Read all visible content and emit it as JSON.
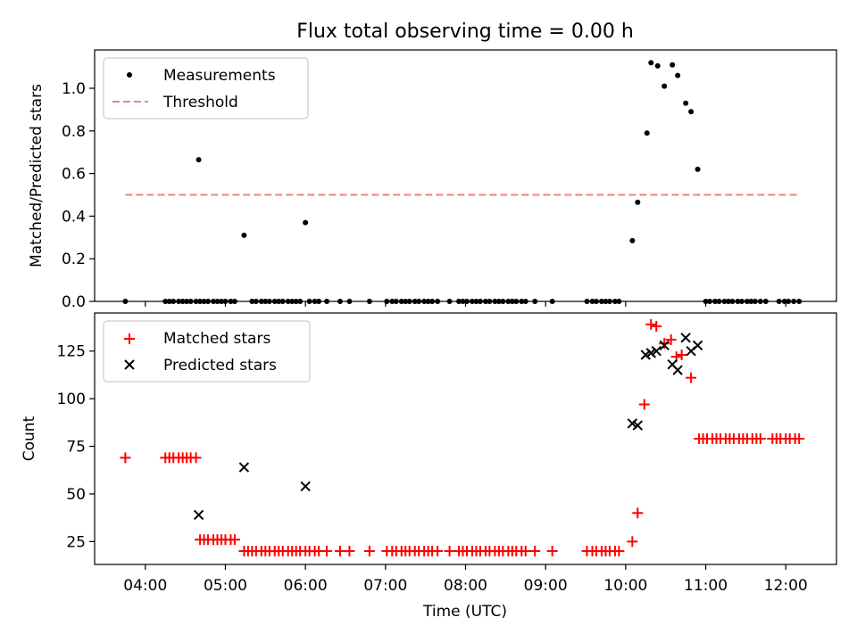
{
  "figure_title": "Flux total observing time = 0.00 h",
  "colors": {
    "measurement": "#000000",
    "threshold": "#f08080",
    "matched": "#ff0000",
    "predicted": "#000000"
  },
  "chart_data": [
    {
      "type": "scatter",
      "title": "Flux total observing time = 0.00 h",
      "xlabel": "",
      "ylabel": "Matched/Predicted stars",
      "xlim": [
        "03:22",
        "12:38"
      ],
      "ylim": [
        0,
        1.18
      ],
      "grid": false,
      "legend_position": "upper-left",
      "yticks": [
        0.0,
        0.2,
        0.4,
        0.6,
        0.8,
        1.0
      ],
      "ytick_labels": [
        "0.0",
        "0.2",
        "0.4",
        "0.6",
        "0.8",
        "1.0"
      ],
      "legend": {
        "measurements": "Measurements",
        "threshold": "Threshold"
      },
      "threshold": {
        "name": "Threshold",
        "y": 0.5,
        "x_range": [
          "03:45",
          "12:10"
        ]
      },
      "series": [
        {
          "name": "Measurements",
          "marker": "dot",
          "points": [
            [
              "03:45",
              0.0
            ],
            [
              "04:15",
              0.0
            ],
            [
              "04:18",
              0.0
            ],
            [
              "04:21",
              0.0
            ],
            [
              "04:25",
              0.0
            ],
            [
              "04:28",
              0.0
            ],
            [
              "04:31",
              0.0
            ],
            [
              "04:34",
              0.0
            ],
            [
              "04:38",
              0.0
            ],
            [
              "04:41",
              0.0
            ],
            [
              "04:44",
              0.0
            ],
            [
              "04:47",
              0.0
            ],
            [
              "04:40",
              0.665
            ],
            [
              "04:51",
              0.0
            ],
            [
              "04:54",
              0.0
            ],
            [
              "04:57",
              0.0
            ],
            [
              "05:00",
              0.0
            ],
            [
              "05:04",
              0.0
            ],
            [
              "05:07",
              0.0
            ],
            [
              "05:14",
              0.31
            ],
            [
              "05:20",
              0.0
            ],
            [
              "05:23",
              0.0
            ],
            [
              "05:27",
              0.0
            ],
            [
              "05:30",
              0.0
            ],
            [
              "05:33",
              0.0
            ],
            [
              "05:37",
              0.0
            ],
            [
              "05:40",
              0.0
            ],
            [
              "05:43",
              0.0
            ],
            [
              "05:47",
              0.0
            ],
            [
              "05:50",
              0.0
            ],
            [
              "05:53",
              0.0
            ],
            [
              "05:56",
              0.0
            ],
            [
              "06:00",
              0.37
            ],
            [
              "06:03",
              0.0
            ],
            [
              "06:07",
              0.0
            ],
            [
              "06:10",
              0.0
            ],
            [
              "06:16",
              0.0
            ],
            [
              "06:26",
              0.0
            ],
            [
              "06:33",
              0.0
            ],
            [
              "06:48",
              0.0
            ],
            [
              "07:01",
              0.0
            ],
            [
              "07:05",
              0.0
            ],
            [
              "07:08",
              0.0
            ],
            [
              "07:12",
              0.0
            ],
            [
              "07:15",
              0.0
            ],
            [
              "07:18",
              0.0
            ],
            [
              "07:22",
              0.0
            ],
            [
              "07:25",
              0.0
            ],
            [
              "07:29",
              0.0
            ],
            [
              "07:32",
              0.0
            ],
            [
              "07:35",
              0.0
            ],
            [
              "07:39",
              0.0
            ],
            [
              "07:48",
              0.0
            ],
            [
              "07:55",
              0.0
            ],
            [
              "07:58",
              0.0
            ],
            [
              "08:01",
              0.0
            ],
            [
              "08:05",
              0.0
            ],
            [
              "08:08",
              0.0
            ],
            [
              "08:11",
              0.0
            ],
            [
              "08:15",
              0.0
            ],
            [
              "08:18",
              0.0
            ],
            [
              "08:22",
              0.0
            ],
            [
              "08:25",
              0.0
            ],
            [
              "08:28",
              0.0
            ],
            [
              "08:32",
              0.0
            ],
            [
              "08:35",
              0.0
            ],
            [
              "08:38",
              0.0
            ],
            [
              "08:42",
              0.0
            ],
            [
              "08:45",
              0.0
            ],
            [
              "08:52",
              0.0
            ],
            [
              "09:05",
              0.0
            ],
            [
              "09:31",
              0.0
            ],
            [
              "09:35",
              0.0
            ],
            [
              "09:38",
              0.0
            ],
            [
              "09:42",
              0.0
            ],
            [
              "09:45",
              0.0
            ],
            [
              "09:48",
              0.0
            ],
            [
              "09:52",
              0.0
            ],
            [
              "09:55",
              0.0
            ],
            [
              "10:05",
              0.285
            ],
            [
              "10:09",
              0.465
            ],
            [
              "10:16",
              0.79
            ],
            [
              "10:19",
              1.12
            ],
            [
              "10:24",
              1.105
            ],
            [
              "10:29",
              1.01
            ],
            [
              "10:35",
              1.11
            ],
            [
              "10:39",
              1.06
            ],
            [
              "10:45",
              0.93
            ],
            [
              "10:49",
              0.89
            ],
            [
              "10:54",
              0.62
            ],
            [
              "11:00",
              0.0
            ],
            [
              "11:03",
              0.0
            ],
            [
              "11:07",
              0.0
            ],
            [
              "11:10",
              0.0
            ],
            [
              "11:14",
              0.0
            ],
            [
              "11:17",
              0.0
            ],
            [
              "11:20",
              0.0
            ],
            [
              "11:24",
              0.0
            ],
            [
              "11:27",
              0.0
            ],
            [
              "11:31",
              0.0
            ],
            [
              "11:34",
              0.0
            ],
            [
              "11:37",
              0.0
            ],
            [
              "11:41",
              0.0
            ],
            [
              "11:45",
              0.0
            ],
            [
              "11:55",
              0.0
            ],
            [
              "11:59",
              0.0
            ],
            [
              "12:02",
              0.0
            ],
            [
              "12:06",
              0.0
            ],
            [
              "12:10",
              0.0
            ]
          ]
        }
      ]
    },
    {
      "type": "scatter",
      "title": "",
      "xlabel": "Time (UTC)",
      "ylabel": "Count",
      "xlim": [
        "03:22",
        "12:38"
      ],
      "ylim": [
        13,
        145
      ],
      "grid": false,
      "legend_position": "upper-left",
      "yticks": [
        25,
        50,
        75,
        100,
        125
      ],
      "ytick_labels": [
        "25",
        "50",
        "75",
        "100",
        "125"
      ],
      "xticks": [
        "04:00",
        "05:00",
        "06:00",
        "07:00",
        "08:00",
        "09:00",
        "10:00",
        "11:00",
        "12:00"
      ],
      "legend": {
        "matched": "Matched stars",
        "predicted": "Predicted stars"
      },
      "series": [
        {
          "name": "Matched stars",
          "marker": "plus",
          "points": [
            [
              "03:45",
              69
            ],
            [
              "04:15",
              69
            ],
            [
              "04:18",
              69
            ],
            [
              "04:21",
              69
            ],
            [
              "04:25",
              69
            ],
            [
              "04:28",
              69
            ],
            [
              "04:31",
              69
            ],
            [
              "04:34",
              69
            ],
            [
              "04:38",
              69
            ],
            [
              "04:41",
              26
            ],
            [
              "04:44",
              26
            ],
            [
              "04:47",
              26
            ],
            [
              "04:51",
              26
            ],
            [
              "04:54",
              26
            ],
            [
              "04:57",
              26
            ],
            [
              "05:00",
              26
            ],
            [
              "05:04",
              26
            ],
            [
              "05:07",
              26
            ],
            [
              "05:14",
              20
            ],
            [
              "05:17",
              20
            ],
            [
              "05:20",
              20
            ],
            [
              "05:23",
              20
            ],
            [
              "05:27",
              20
            ],
            [
              "05:30",
              20
            ],
            [
              "05:33",
              20
            ],
            [
              "05:37",
              20
            ],
            [
              "05:40",
              20
            ],
            [
              "05:43",
              20
            ],
            [
              "05:47",
              20
            ],
            [
              "05:50",
              20
            ],
            [
              "05:53",
              20
            ],
            [
              "05:56",
              20
            ],
            [
              "06:00",
              20
            ],
            [
              "06:03",
              20
            ],
            [
              "06:07",
              20
            ],
            [
              "06:10",
              20
            ],
            [
              "06:16",
              20
            ],
            [
              "06:26",
              20
            ],
            [
              "06:33",
              20
            ],
            [
              "06:48",
              20
            ],
            [
              "07:01",
              20
            ],
            [
              "07:05",
              20
            ],
            [
              "07:08",
              20
            ],
            [
              "07:12",
              20
            ],
            [
              "07:15",
              20
            ],
            [
              "07:18",
              20
            ],
            [
              "07:22",
              20
            ],
            [
              "07:25",
              20
            ],
            [
              "07:29",
              20
            ],
            [
              "07:32",
              20
            ],
            [
              "07:35",
              20
            ],
            [
              "07:39",
              20
            ],
            [
              "07:48",
              20
            ],
            [
              "07:55",
              20
            ],
            [
              "07:58",
              20
            ],
            [
              "08:01",
              20
            ],
            [
              "08:05",
              20
            ],
            [
              "08:08",
              20
            ],
            [
              "08:11",
              20
            ],
            [
              "08:15",
              20
            ],
            [
              "08:18",
              20
            ],
            [
              "08:22",
              20
            ],
            [
              "08:25",
              20
            ],
            [
              "08:28",
              20
            ],
            [
              "08:32",
              20
            ],
            [
              "08:35",
              20
            ],
            [
              "08:38",
              20
            ],
            [
              "08:42",
              20
            ],
            [
              "08:45",
              20
            ],
            [
              "08:52",
              20
            ],
            [
              "09:05",
              20
            ],
            [
              "09:31",
              20
            ],
            [
              "09:35",
              20
            ],
            [
              "09:38",
              20
            ],
            [
              "09:42",
              20
            ],
            [
              "09:45",
              20
            ],
            [
              "09:48",
              20
            ],
            [
              "09:52",
              20
            ],
            [
              "09:55",
              20
            ],
            [
              "10:05",
              25
            ],
            [
              "10:09",
              40
            ],
            [
              "10:14",
              97
            ],
            [
              "10:19",
              139
            ],
            [
              "10:23",
              138
            ],
            [
              "10:29",
              129
            ],
            [
              "10:34",
              131
            ],
            [
              "10:38",
              122
            ],
            [
              "10:42",
              123
            ],
            [
              "10:49",
              111
            ],
            [
              "10:55",
              79
            ],
            [
              "10:58",
              79
            ],
            [
              "11:01",
              79
            ],
            [
              "11:05",
              79
            ],
            [
              "11:08",
              79
            ],
            [
              "11:11",
              79
            ],
            [
              "11:15",
              79
            ],
            [
              "11:18",
              79
            ],
            [
              "11:21",
              79
            ],
            [
              "11:25",
              79
            ],
            [
              "11:28",
              79
            ],
            [
              "11:31",
              79
            ],
            [
              "11:35",
              79
            ],
            [
              "11:38",
              79
            ],
            [
              "11:41",
              79
            ],
            [
              "11:50",
              79
            ],
            [
              "11:53",
              79
            ],
            [
              "11:56",
              79
            ],
            [
              "12:00",
              79
            ],
            [
              "12:03",
              79
            ],
            [
              "12:07",
              79
            ],
            [
              "12:10",
              79
            ]
          ]
        },
        {
          "name": "Predicted stars",
          "marker": "x",
          "points": [
            [
              "04:40",
              39
            ],
            [
              "05:14",
              64
            ],
            [
              "06:00",
              54
            ],
            [
              "10:05",
              87
            ],
            [
              "10:09",
              86
            ],
            [
              "10:15",
              123
            ],
            [
              "10:19",
              124
            ],
            [
              "10:23",
              125
            ],
            [
              "10:29",
              128
            ],
            [
              "10:35",
              118
            ],
            [
              "10:39",
              115
            ],
            [
              "10:45",
              132
            ],
            [
              "10:49",
              125
            ],
            [
              "10:54",
              128
            ]
          ]
        }
      ]
    }
  ]
}
